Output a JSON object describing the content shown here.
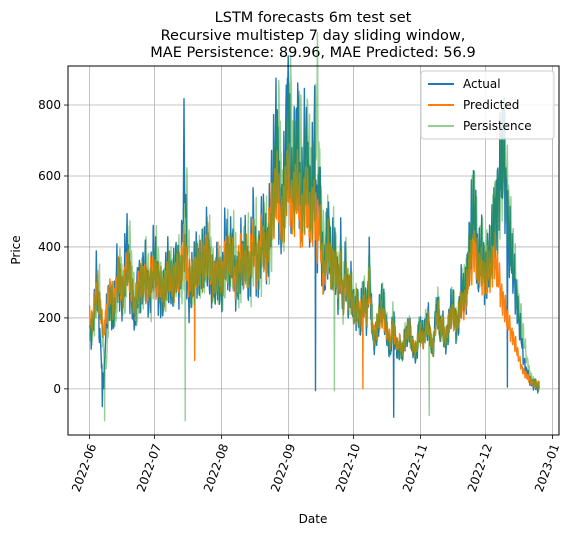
{
  "chart_data": {
    "type": "line",
    "title": [
      "LSTM forecasts 6m test set",
      "Recursive multistep 7 day sliding window,",
      "MAE Persistence: 89.96, MAE Predicted: 56.9"
    ],
    "xlabel": "Date",
    "ylabel": "Price",
    "ylim": [
      -130,
      910
    ],
    "xlim": [
      "2022-05-22",
      "2023-01-04"
    ],
    "x_ticks": [
      "2022-06",
      "2022-07",
      "2022-08",
      "2022-09",
      "2022-10",
      "2022-11",
      "2022-12",
      "2023-01"
    ],
    "y_ticks": [
      0,
      200,
      400,
      600,
      800
    ],
    "grid": true,
    "legend_position": "top-right",
    "x_start": "2022-06-01",
    "x_end": "2022-12-25",
    "series": [
      {
        "name": "Actual",
        "color": "#1f77b4",
        "opacity": 1.0,
        "values": [
          160,
          150,
          230,
          320,
          180,
          80,
          10,
          200,
          260,
          250,
          180,
          300,
          350,
          280,
          240,
          360,
          410,
          300,
          250,
          180,
          280,
          320,
          270,
          350,
          300,
          260,
          320,
          370,
          330,
          290,
          270,
          250,
          300,
          360,
          320,
          280,
          330,
          360,
          300,
          400,
          680,
          340,
          260,
          300,
          320,
          360,
          340,
          380,
          320,
          420,
          400,
          310,
          290,
          300,
          350,
          300,
          280,
          410,
          390,
          360,
          420,
          300,
          290,
          350,
          390,
          330,
          410,
          310,
          370,
          460,
          360,
          330,
          420,
          450,
          400,
          380,
          500,
          560,
          620,
          760,
          540,
          470,
          560,
          720,
          850,
          520,
          600,
          650,
          780,
          480,
          560,
          720,
          620,
          520,
          580,
          690,
          440,
          600,
          360,
          300,
          420,
          460,
          320,
          400,
          350,
          280,
          380,
          220,
          360,
          260,
          300,
          240,
          200,
          260,
          180,
          240,
          260,
          200,
          350,
          210,
          120,
          160,
          200,
          240,
          230,
          180,
          140,
          100,
          200,
          140,
          100,
          120,
          90,
          140,
          160,
          180,
          120,
          100,
          90,
          180,
          160,
          140,
          180,
          200,
          130,
          100,
          200,
          240,
          160,
          180,
          120,
          160,
          200,
          240,
          200,
          170,
          220,
          280,
          260,
          300,
          380,
          440,
          520,
          470,
          330,
          400,
          360,
          300,
          380,
          360,
          420,
          480,
          520,
          600,
          640,
          660,
          520,
          420,
          380,
          320,
          280,
          200,
          160,
          90,
          60,
          40,
          20,
          10,
          15,
          5
        ],
        "spikes": [
          [
            5,
            -50
          ],
          [
            95,
            -5
          ],
          [
            128,
            -80
          ],
          [
            176,
            5
          ]
        ]
      },
      {
        "name": "Predicted",
        "color": "#ff7f0e",
        "opacity": 1.0,
        "values": [
          200,
          180,
          230,
          300,
          250,
          190,
          160,
          220,
          260,
          270,
          230,
          280,
          320,
          290,
          260,
          330,
          360,
          300,
          270,
          230,
          280,
          300,
          280,
          320,
          300,
          280,
          310,
          340,
          320,
          300,
          290,
          270,
          300,
          330,
          310,
          290,
          320,
          340,
          310,
          360,
          420,
          350,
          300,
          310,
          320,
          350,
          340,
          360,
          330,
          400,
          390,
          330,
          310,
          320,
          350,
          320,
          300,
          380,
          370,
          350,
          380,
          320,
          310,
          350,
          370,
          340,
          380,
          330,
          360,
          420,
          360,
          340,
          400,
          420,
          390,
          380,
          450,
          500,
          540,
          600,
          500,
          460,
          520,
          580,
          600,
          500,
          540,
          560,
          580,
          460,
          500,
          560,
          520,
          460,
          500,
          540,
          420,
          480,
          360,
          320,
          380,
          400,
          320,
          360,
          330,
          290,
          340,
          250,
          320,
          260,
          280,
          240,
          210,
          250,
          190,
          230,
          240,
          210,
          300,
          200,
          150,
          170,
          190,
          210,
          210,
          180,
          150,
          130,
          180,
          150,
          120,
          130,
          110,
          140,
          160,
          170,
          130,
          120,
          110,
          160,
          150,
          140,
          170,
          180,
          140,
          120,
          180,
          210,
          170,
          180,
          140,
          160,
          190,
          220,
          200,
          180,
          210,
          250,
          240,
          270,
          320,
          360,
          400,
          380,
          320,
          350,
          330,
          300,
          340,
          330,
          360,
          380,
          330,
          300,
          260,
          240,
          200,
          180,
          160,
          140,
          120,
          90,
          70,
          50,
          40,
          30,
          25,
          20,
          15,
          10
        ],
        "spikes": [
          [
            44,
            80
          ],
          [
            115,
            0
          ]
        ]
      },
      {
        "name": "Persistence",
        "color": "#2ca02c",
        "opacity": 0.5,
        "values": [
          180,
          170,
          200,
          240,
          300,
          200,
          100,
          60,
          210,
          260,
          250,
          200,
          300,
          350,
          290,
          250,
          350,
          400,
          310,
          260,
          200,
          280,
          320,
          280,
          340,
          310,
          270,
          320,
          360,
          330,
          300,
          280,
          260,
          300,
          350,
          320,
          290,
          330,
          360,
          310,
          380,
          520,
          360,
          290,
          310,
          330,
          350,
          350,
          370,
          330,
          410,
          400,
          320,
          300,
          310,
          340,
          310,
          290,
          400,
          390,
          370,
          410,
          320,
          300,
          340,
          380,
          340,
          400,
          320,
          360,
          440,
          370,
          340,
          400,
          440,
          410,
          390,
          480,
          540,
          600,
          760,
          560,
          480,
          560,
          700,
          830,
          540,
          600,
          640,
          760,
          500,
          570,
          700,
          640,
          540,
          580,
          860,
          600,
          460,
          360,
          420,
          460,
          340,
          400,
          360,
          300,
          380,
          240,
          360,
          270,
          300,
          250,
          210,
          260,
          190,
          240,
          260,
          210,
          340,
          220,
          130,
          160,
          200,
          240,
          240,
          190,
          150,
          110,
          200,
          150,
          110,
          120,
          100,
          140,
          160,
          180,
          130,
          110,
          100,
          180,
          160,
          150,
          180,
          200,
          140,
          110,
          200,
          240,
          170,
          180,
          130,
          160,
          200,
          240,
          210,
          180,
          220,
          270,
          270,
          300,
          370,
          430,
          510,
          480,
          350,
          400,
          370,
          320,
          380,
          370,
          420,
          470,
          500,
          560,
          600,
          660,
          600,
          500,
          420,
          360,
          300,
          240,
          200,
          150,
          110,
          70,
          40,
          20,
          15,
          10
        ],
        "spikes": [
          [
            6,
            -90
          ],
          [
            40,
            -90
          ],
          [
            103,
            -5
          ],
          [
            143,
            -75
          ]
        ]
      }
    ]
  }
}
